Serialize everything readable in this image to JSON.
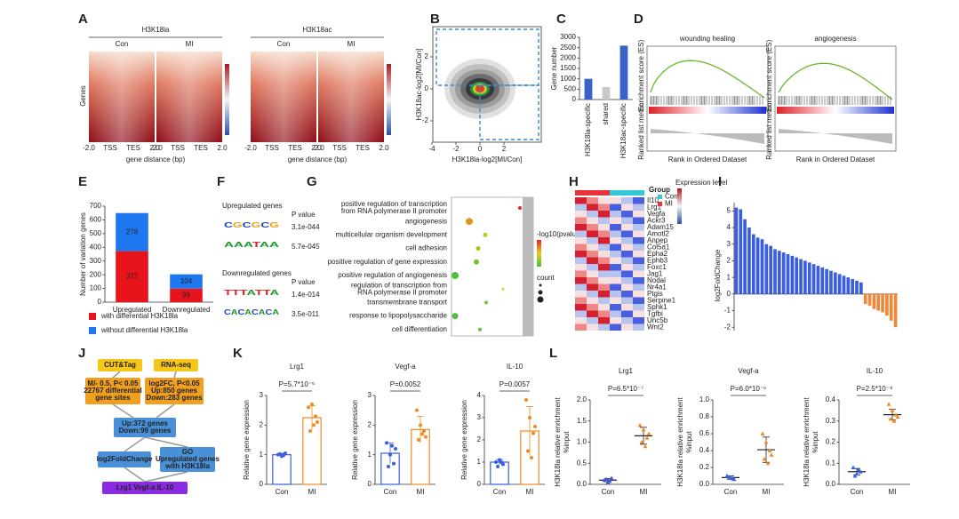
{
  "panel_labels": [
    "A",
    "B",
    "C",
    "D",
    "E",
    "F",
    "G",
    "H",
    "I",
    "J",
    "K",
    "L"
  ],
  "heatmap_A": {
    "marks": [
      "H3K18la",
      "H3K18ac"
    ],
    "groups": [
      "Con",
      "MI",
      "Con",
      "MI"
    ],
    "ylabel": "Genes",
    "xticks": [
      "-2.0",
      "TSS",
      "TES",
      "2.0"
    ],
    "xlabel": "gene distance (bp)"
  },
  "scatter_B": {
    "xlabel": "H3K18la-log2[MI/Con]",
    "ylabel": "H3K18ac-log2[MI/Con]",
    "xticks": [
      -4,
      -2,
      0,
      2
    ],
    "yticks": [
      2,
      0,
      -2
    ]
  },
  "gsea_D": {
    "titles": [
      "wounding healing",
      "angiogenesis"
    ],
    "ylabel": "Enrichment score (ES)",
    "ylabel2": "Ranked list metric",
    "xlabel": "Rank in Ordered Dataset"
  },
  "motifs_F": {
    "up_title": "Upregulated genes",
    "down_title": "Downregulated genes",
    "pheader": "P value",
    "up": [
      {
        "motif": "CGCGCG",
        "p": "3.1e-044"
      },
      {
        "motif": "AAATAA",
        "p": "5.7e-045"
      }
    ],
    "down": [
      {
        "motif": "TTTATTA",
        "p": "1.4e-014"
      },
      {
        "motif": "CACACACA",
        "p": "3.5e-011"
      }
    ]
  },
  "go_G": {
    "terms": [
      {
        "lines": [
          "positive regulation of transcription",
          "from RNA polymerase II promoter"
        ],
        "color": "#222"
      },
      {
        "lines": [
          "angiogenesis"
        ],
        "color": "#e02020"
      },
      {
        "lines": [
          "multicellular organism development"
        ],
        "color": "#222"
      },
      {
        "lines": [
          "cell adhesion"
        ],
        "color": "#222"
      },
      {
        "lines": [
          "positive regulation of gene expression"
        ],
        "color": "#222"
      },
      {
        "lines": [
          "positive regulation of angiogenesis"
        ],
        "color": "#e02020"
      },
      {
        "lines": [
          "regulation of transcription from",
          "RNA polymerase II promoter"
        ],
        "color": "#222"
      },
      {
        "lines": [
          "transmembrane transport"
        ],
        "color": "#222"
      },
      {
        "lines": [
          "response to lipopolysaccharide"
        ],
        "color": "#222"
      },
      {
        "lines": [
          "cell differentiation"
        ],
        "color": "#222"
      }
    ],
    "legend_color": "-log10(pvalue)",
    "legend_size": "count"
  },
  "heatmap_H": {
    "genes": [
      "Il10",
      "Lrg1",
      "Vegfa",
      "Ackr3",
      "Adam15",
      "Amotl2",
      "Anpep",
      "Col5a1",
      "Epha2",
      "Ephb3",
      "Foxc1",
      "Jag1",
      "Nodal",
      "Nr4a1",
      "Ptgis",
      "Serpine1",
      "Sphk1",
      "Tgfbi",
      "Unc5b",
      "Wnt2"
    ],
    "group_title": "Group",
    "groups": [
      "Con",
      "MI"
    ],
    "group_colors": [
      "#35c7d6",
      "#e8323c"
    ],
    "level_title": "Expression level"
  },
  "flow_J": {
    "nodes": [
      {
        "lines": [
          "CUT&Tag"
        ]
      },
      {
        "lines": [
          "RNA-seq"
        ]
      },
      {
        "lines": [
          "M/- 0.5, P< 0.05",
          "22767 differential",
          "gene sites"
        ]
      },
      {
        "lines": [
          "log2FC, P<0.05",
          "Up:850 genes",
          "Down:283 genes"
        ]
      },
      {
        "lines": [
          "Up:372 genes",
          "Down:99 genes"
        ]
      },
      {
        "lines": [
          "log2FoldChange"
        ]
      },
      {
        "lines": [
          "GO",
          "Upregulated genes",
          "with H3K18la"
        ]
      },
      {
        "lines": [
          "Lrg1  Vegf-a  IL-10"
        ]
      }
    ]
  },
  "chart_data": [
    {
      "type": "bar",
      "ylabel": "Gene number",
      "categories": [
        "H3K18la-specific",
        "shared",
        "H3K18ac-specific"
      ],
      "values": [
        1000,
        600,
        2600
      ],
      "colors": [
        "#3a63c9",
        "#c8c8c8",
        "#3a63c9"
      ],
      "ylim": [
        0,
        3000
      ],
      "yticks": [
        0,
        500,
        1000,
        1500,
        2000,
        2500,
        3000
      ]
    },
    {
      "type": "stacked",
      "ylabel": "Number of variation genes",
      "categories": [
        "Upregulated",
        "Downregulated"
      ],
      "series": [
        {
          "name": "with differential H3K18la",
          "color": "#e8141c",
          "values": [
            372,
            99
          ]
        },
        {
          "name": "without differential H3K18la",
          "color": "#1f77f0",
          "values": [
            278,
            104
          ]
        }
      ],
      "ylim": [
        0,
        700
      ],
      "yticks": [
        0,
        100,
        200,
        300,
        400,
        500,
        600,
        700
      ]
    },
    {
      "type": "signed_bar",
      "ylabel": "log2FoldChange",
      "categories": [
        null,
        null,
        null,
        null,
        null,
        null,
        null,
        null,
        null,
        null,
        null,
        null,
        null,
        null,
        null,
        null,
        null,
        null,
        null,
        null,
        null,
        null,
        null,
        null,
        null,
        null,
        null,
        null,
        null,
        null,
        null,
        null,
        null,
        null,
        null,
        null,
        null,
        null
      ],
      "values": [
        5.2,
        5.1,
        4.5,
        4.0,
        3.6,
        3.4,
        3.3,
        3.0,
        2.9,
        2.7,
        2.6,
        2.5,
        2.4,
        2.3,
        2.2,
        2.1,
        2.0,
        1.9,
        1.8,
        1.7,
        1.6,
        1.5,
        1.4,
        1.3,
        1.2,
        1.1,
        1.0,
        0.9,
        0.8,
        0.7,
        -0.6,
        -0.7,
        -0.9,
        -1.0,
        -1.1,
        -1.3,
        -1.6,
        -2.0
      ],
      "positive_color": "#3a5ee0",
      "negative_color": "#f0883a",
      "ylim": [
        -2.2,
        5.5
      ],
      "yticks": [
        -2,
        -1,
        0,
        1,
        2,
        3,
        4,
        5
      ]
    },
    {
      "type": "bar_dot",
      "title": "Lrg1",
      "annotation": "P=5.7*10⁻⁶",
      "ylabel": "Relative gene expression",
      "categories": [
        "Con",
        "MI"
      ],
      "colors": [
        "#3a5ee0",
        "#f08a24"
      ],
      "means": [
        1.0,
        2.25
      ],
      "errors": [
        0.05,
        0.4
      ],
      "points": [
        [
          1.0,
          0.95,
          1.05,
          1.02,
          0.98
        ],
        [
          2.6,
          2.7,
          2.3,
          1.8,
          2.0,
          2.1
        ]
      ],
      "ylim": [
        0,
        3
      ],
      "yticks": [
        0,
        1,
        2,
        3
      ]
    },
    {
      "type": "bar_dot",
      "title": "Vegf-a",
      "annotation": "P=0.0052",
      "ylabel": "Relative gene expression",
      "categories": [
        "Con",
        "MI"
      ],
      "colors": [
        "#3a5ee0",
        "#f08a24"
      ],
      "means": [
        1.05,
        1.85
      ],
      "errors": [
        0.35,
        0.45
      ],
      "points": [
        [
          1.4,
          1.0,
          0.7,
          0.6,
          1.3,
          1.2
        ],
        [
          2.5,
          2.0,
          1.8,
          1.5,
          1.7,
          1.6
        ]
      ],
      "ylim": [
        0,
        3
      ],
      "yticks": [
        0,
        1,
        2,
        3
      ]
    },
    {
      "type": "bar_dot",
      "title": "IL-10",
      "annotation": "P=0.0057",
      "ylabel": "Relative gene expression",
      "categories": [
        "Con",
        "MI"
      ],
      "colors": [
        "#3a5ee0",
        "#f08a24"
      ],
      "means": [
        1.0,
        2.4
      ],
      "errors": [
        0.12,
        1.1
      ],
      "points": [
        [
          1.0,
          1.1,
          0.9,
          0.8,
          1.0
        ],
        [
          3.8,
          3.0,
          2.3,
          1.5,
          1.2,
          2.6
        ]
      ],
      "ylim": [
        0,
        4
      ],
      "yticks": [
        0,
        1,
        2,
        3,
        4
      ]
    },
    {
      "type": "dot_mean",
      "title": "Lrg1",
      "annotation": "P=6.5*10⁻⁷",
      "ylabel": "H3K18la relative enrichment",
      "ylabel2": "%input",
      "categories": [
        "Con",
        "MI"
      ],
      "colors": [
        "#3a5ee0",
        "#f08a24"
      ],
      "means": [
        0.1,
        1.15
      ],
      "errors": [
        0.04,
        0.2
      ],
      "points": [
        [
          0.1,
          0.05,
          0.15,
          0.12,
          0.08
        ],
        [
          1.4,
          1.3,
          1.1,
          1.0,
          0.9,
          1.2
        ]
      ],
      "ylim": [
        0,
        2
      ],
      "yticks": [
        {
          "value": 0,
          "label": "0.0"
        },
        0.5,
        {
          "value": 1,
          "label": "1.0"
        },
        1.5,
        {
          "value": 2,
          "label": "2.0"
        }
      ]
    },
    {
      "type": "dot_mean",
      "title": "Vegf-a",
      "annotation": "P=6.0*10⁻⁶",
      "ylabel": "H3K18la relative enrichment",
      "ylabel2": "%input",
      "categories": [
        "Con",
        "MI"
      ],
      "colors": [
        "#3a5ee0",
        "#f08a24"
      ],
      "means": [
        0.08,
        0.41
      ],
      "errors": [
        0.02,
        0.15
      ],
      "points": [
        [
          0.1,
          0.08,
          0.06,
          0.09,
          0.07
        ],
        [
          0.6,
          0.5,
          0.4,
          0.3,
          0.25,
          0.35
        ]
      ],
      "ylim": [
        0,
        1
      ],
      "yticks": [
        {
          "value": 0,
          "label": "0.0"
        },
        0.2,
        0.4,
        0.6,
        0.8,
        {
          "value": 1,
          "label": "1.0"
        }
      ]
    },
    {
      "type": "dot_mean",
      "title": "IL-10",
      "annotation": "P=2.5*10⁻⁹",
      "ylabel": "H3K18la relative enrichment",
      "ylabel2": "%input",
      "categories": [
        "Con",
        "MI"
      ],
      "colors": [
        "#3a5ee0",
        "#f08a24"
      ],
      "means": [
        0.06,
        0.33
      ],
      "errors": [
        0.015,
        0.025
      ],
      "points": [
        [
          0.08,
          0.05,
          0.06,
          0.04,
          0.07
        ],
        [
          0.38,
          0.35,
          0.33,
          0.31,
          0.3,
          0.32
        ]
      ],
      "ylim": [
        0,
        0.4
      ],
      "yticks": [
        {
          "value": 0,
          "label": "0.0"
        },
        0.1,
        0.2,
        0.3,
        0.4
      ]
    }
  ]
}
